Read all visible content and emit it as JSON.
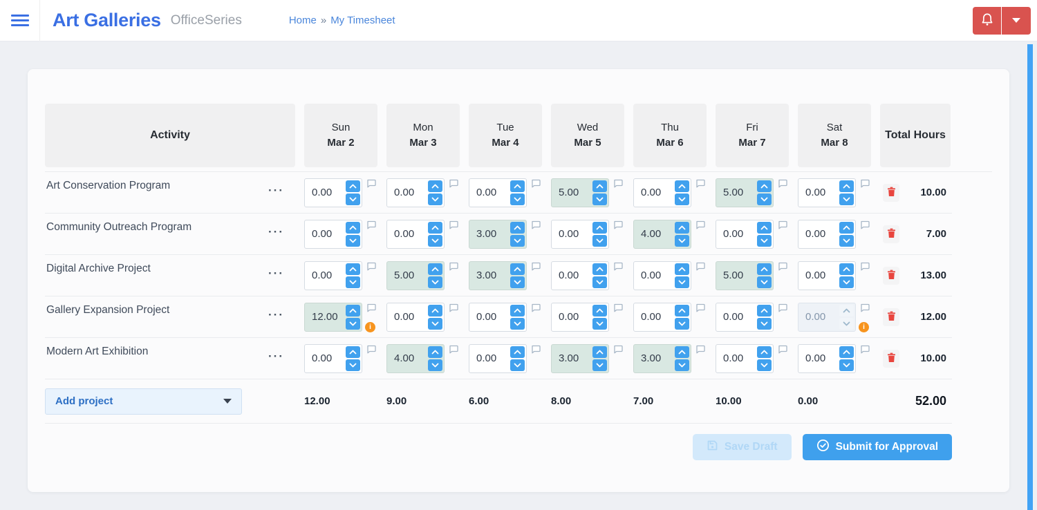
{
  "topbar": {
    "brand": "Art Galleries",
    "suite": "OfficeSeries",
    "breadcrumb": {
      "home": "Home",
      "separator": "»",
      "current": "My Timesheet"
    }
  },
  "table": {
    "activity_header": "Activity",
    "total_header": "Total Hours",
    "days": [
      {
        "dow": "Sun",
        "date": "Mar 2"
      },
      {
        "dow": "Mon",
        "date": "Mar 3"
      },
      {
        "dow": "Tue",
        "date": "Mar 4"
      },
      {
        "dow": "Wed",
        "date": "Mar 5"
      },
      {
        "dow": "Thu",
        "date": "Mar 6"
      },
      {
        "dow": "Fri",
        "date": "Mar 7"
      },
      {
        "dow": "Sat",
        "date": "Mar 8"
      }
    ],
    "rows": [
      {
        "name": "Art Conservation Program",
        "cells": [
          {
            "value": "0.00",
            "state": "empty",
            "info": false
          },
          {
            "value": "0.00",
            "state": "empty",
            "info": false
          },
          {
            "value": "0.00",
            "state": "empty",
            "info": false
          },
          {
            "value": "5.00",
            "state": "filled",
            "info": false
          },
          {
            "value": "0.00",
            "state": "empty",
            "info": false
          },
          {
            "value": "5.00",
            "state": "filled",
            "info": false
          },
          {
            "value": "0.00",
            "state": "empty",
            "info": false
          }
        ],
        "total": "10.00"
      },
      {
        "name": "Community Outreach Program",
        "cells": [
          {
            "value": "0.00",
            "state": "empty",
            "info": false
          },
          {
            "value": "0.00",
            "state": "empty",
            "info": false
          },
          {
            "value": "3.00",
            "state": "filled",
            "info": false
          },
          {
            "value": "0.00",
            "state": "empty",
            "info": false
          },
          {
            "value": "4.00",
            "state": "filled",
            "info": false
          },
          {
            "value": "0.00",
            "state": "empty",
            "info": false
          },
          {
            "value": "0.00",
            "state": "empty",
            "info": false
          }
        ],
        "total": "7.00"
      },
      {
        "name": "Digital Archive Project",
        "cells": [
          {
            "value": "0.00",
            "state": "empty",
            "info": false
          },
          {
            "value": "5.00",
            "state": "filled",
            "info": false
          },
          {
            "value": "3.00",
            "state": "filled",
            "info": false
          },
          {
            "value": "0.00",
            "state": "empty",
            "info": false
          },
          {
            "value": "0.00",
            "state": "empty",
            "info": false
          },
          {
            "value": "5.00",
            "state": "filled",
            "info": false
          },
          {
            "value": "0.00",
            "state": "empty",
            "info": false
          }
        ],
        "total": "13.00"
      },
      {
        "name": "Gallery Expansion Project",
        "cells": [
          {
            "value": "12.00",
            "state": "filled",
            "info": true
          },
          {
            "value": "0.00",
            "state": "empty",
            "info": false
          },
          {
            "value": "0.00",
            "state": "empty",
            "info": false
          },
          {
            "value": "0.00",
            "state": "empty",
            "info": false
          },
          {
            "value": "0.00",
            "state": "empty",
            "info": false
          },
          {
            "value": "0.00",
            "state": "empty",
            "info": false
          },
          {
            "value": "0.00",
            "state": "disabled",
            "info": true
          }
        ],
        "total": "12.00"
      },
      {
        "name": "Modern Art Exhibition",
        "cells": [
          {
            "value": "0.00",
            "state": "empty",
            "info": false
          },
          {
            "value": "4.00",
            "state": "filled",
            "info": false
          },
          {
            "value": "0.00",
            "state": "empty",
            "info": false
          },
          {
            "value": "3.00",
            "state": "filled",
            "info": false
          },
          {
            "value": "3.00",
            "state": "filled",
            "info": false
          },
          {
            "value": "0.00",
            "state": "empty",
            "info": false
          },
          {
            "value": "0.00",
            "state": "empty",
            "info": false
          }
        ],
        "total": "10.00"
      }
    ],
    "footer": {
      "add_project_label": "Add project",
      "day_totals": [
        "12.00",
        "9.00",
        "6.00",
        "8.00",
        "7.00",
        "10.00",
        "0.00"
      ],
      "grand_total": "52.00"
    }
  },
  "actions": {
    "save_draft": "Save Draft",
    "submit": "Submit for Approval"
  },
  "colors": {
    "brand_blue": "#3a6fe3",
    "danger_red": "#d9534f",
    "spinner_blue": "#41a1ee",
    "filled_cell": "#d9e8e2",
    "info_orange": "#f7941e",
    "submit_blue": "#3fa0ed",
    "scrollbar_blue": "#42a3f5"
  }
}
